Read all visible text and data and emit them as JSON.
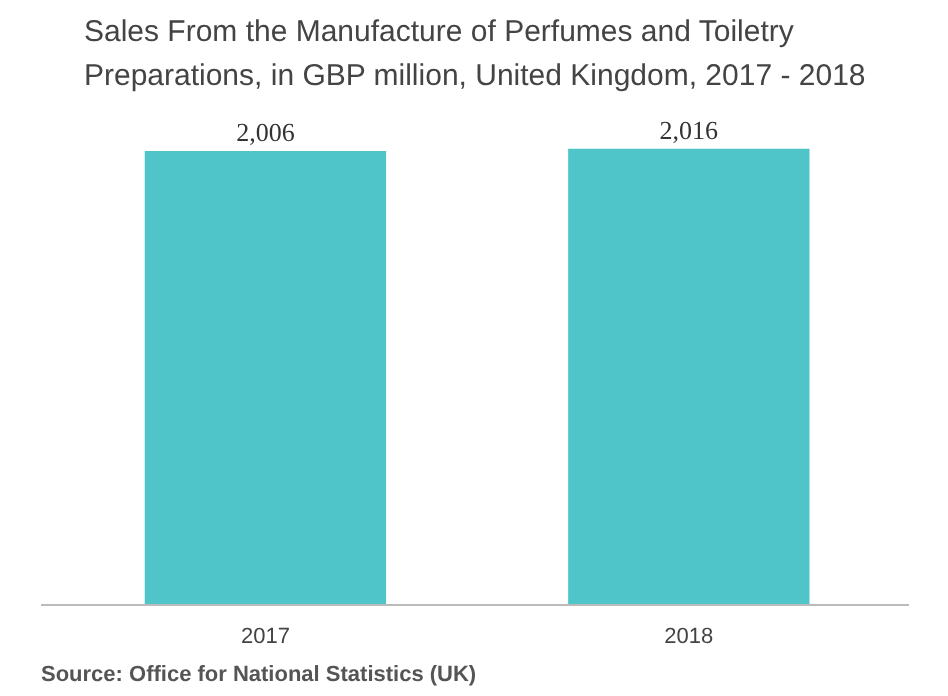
{
  "chart_data": {
    "type": "bar",
    "title": "Sales From the Manufacture of Perfumes and Toiletry\nPreparations, in GBP million, United Kingdom, 2017 - 2018",
    "categories": [
      "2017",
      "2018"
    ],
    "values": [
      2006,
      2016
    ],
    "color": "#4fc4c9",
    "data_labels": true,
    "value_labels": [
      "2,006",
      "2,016"
    ],
    "grid": false,
    "annotations": [
      "Source: Office for National Statistics (UK)"
    ]
  }
}
